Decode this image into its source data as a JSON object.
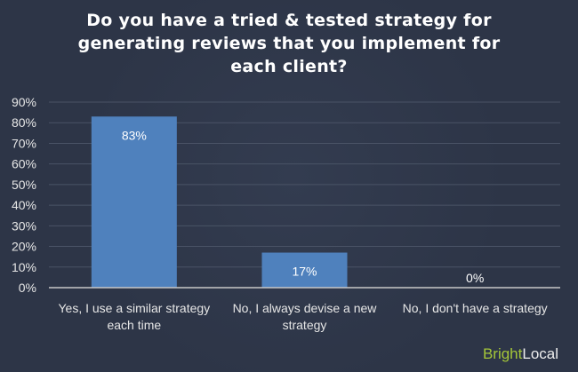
{
  "chart_data": {
    "type": "bar",
    "title": "Do you have a tried & tested strategy for generating reviews that you implement for each client?",
    "title_lines": [
      "Do you have a tried & tested strategy for",
      "generating reviews that you implement for",
      "each client?"
    ],
    "categories": [
      [
        "Yes, I use a similar strategy",
        "each time"
      ],
      [
        "No, I always devise a new",
        "strategy"
      ],
      [
        "No, I don't have a strategy"
      ]
    ],
    "values": [
      83,
      17,
      0
    ],
    "data_labels": [
      "83%",
      "17%",
      "0%"
    ],
    "yticks": [
      "0%",
      "10%",
      "20%",
      "30%",
      "40%",
      "50%",
      "60%",
      "70%",
      "80%",
      "90%"
    ],
    "ylim": [
      0,
      90
    ],
    "grid": true,
    "xlabel": "",
    "ylabel": "",
    "bar_color": "#4f81bd"
  },
  "brand": {
    "part1": "Bright",
    "part2": "Local"
  }
}
